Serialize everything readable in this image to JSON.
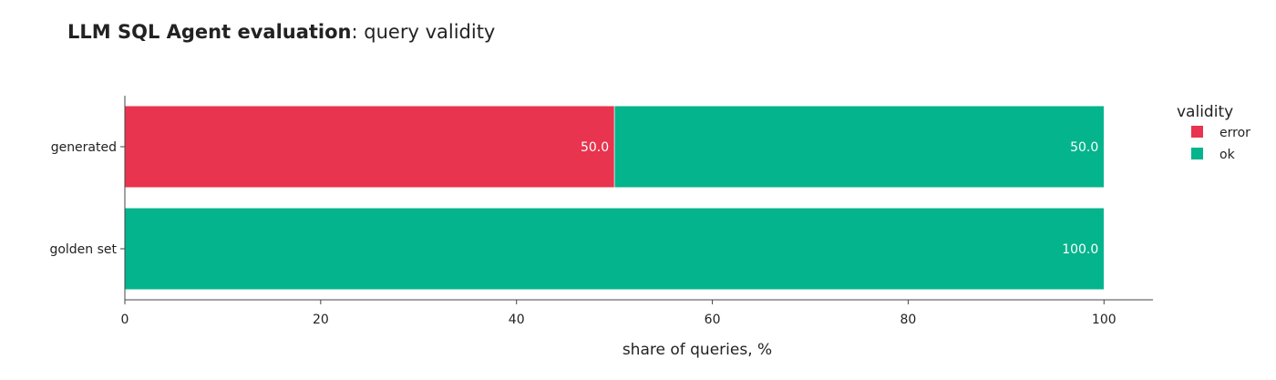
{
  "title": {
    "bold": "LLM SQL Agent evaluation",
    "rest": ": query validity"
  },
  "chart_data": {
    "type": "bar",
    "orientation": "horizontal",
    "stacked": true,
    "title": "LLM SQL Agent evaluation: query validity",
    "categories": [
      "generated",
      "golden set"
    ],
    "series": [
      {
        "name": "error",
        "color": "#e8344e",
        "values": [
          50.0,
          0
        ],
        "labels": [
          "50.0",
          ""
        ]
      },
      {
        "name": "ok",
        "color": "#04b48c",
        "values": [
          50.0,
          100.0
        ],
        "labels": [
          "50.0",
          "100.0"
        ]
      }
    ],
    "xlabel": "share of queries, %",
    "ylabel": "",
    "xlim": [
      0,
      105
    ],
    "xticks": [
      0,
      20,
      40,
      60,
      80,
      100
    ],
    "xtick_labels": [
      "0",
      "20",
      "40",
      "60",
      "80",
      "100"
    ],
    "grid": false,
    "legend": {
      "title": "validity",
      "placement": "top-right",
      "entries": [
        "error",
        "ok"
      ]
    }
  }
}
